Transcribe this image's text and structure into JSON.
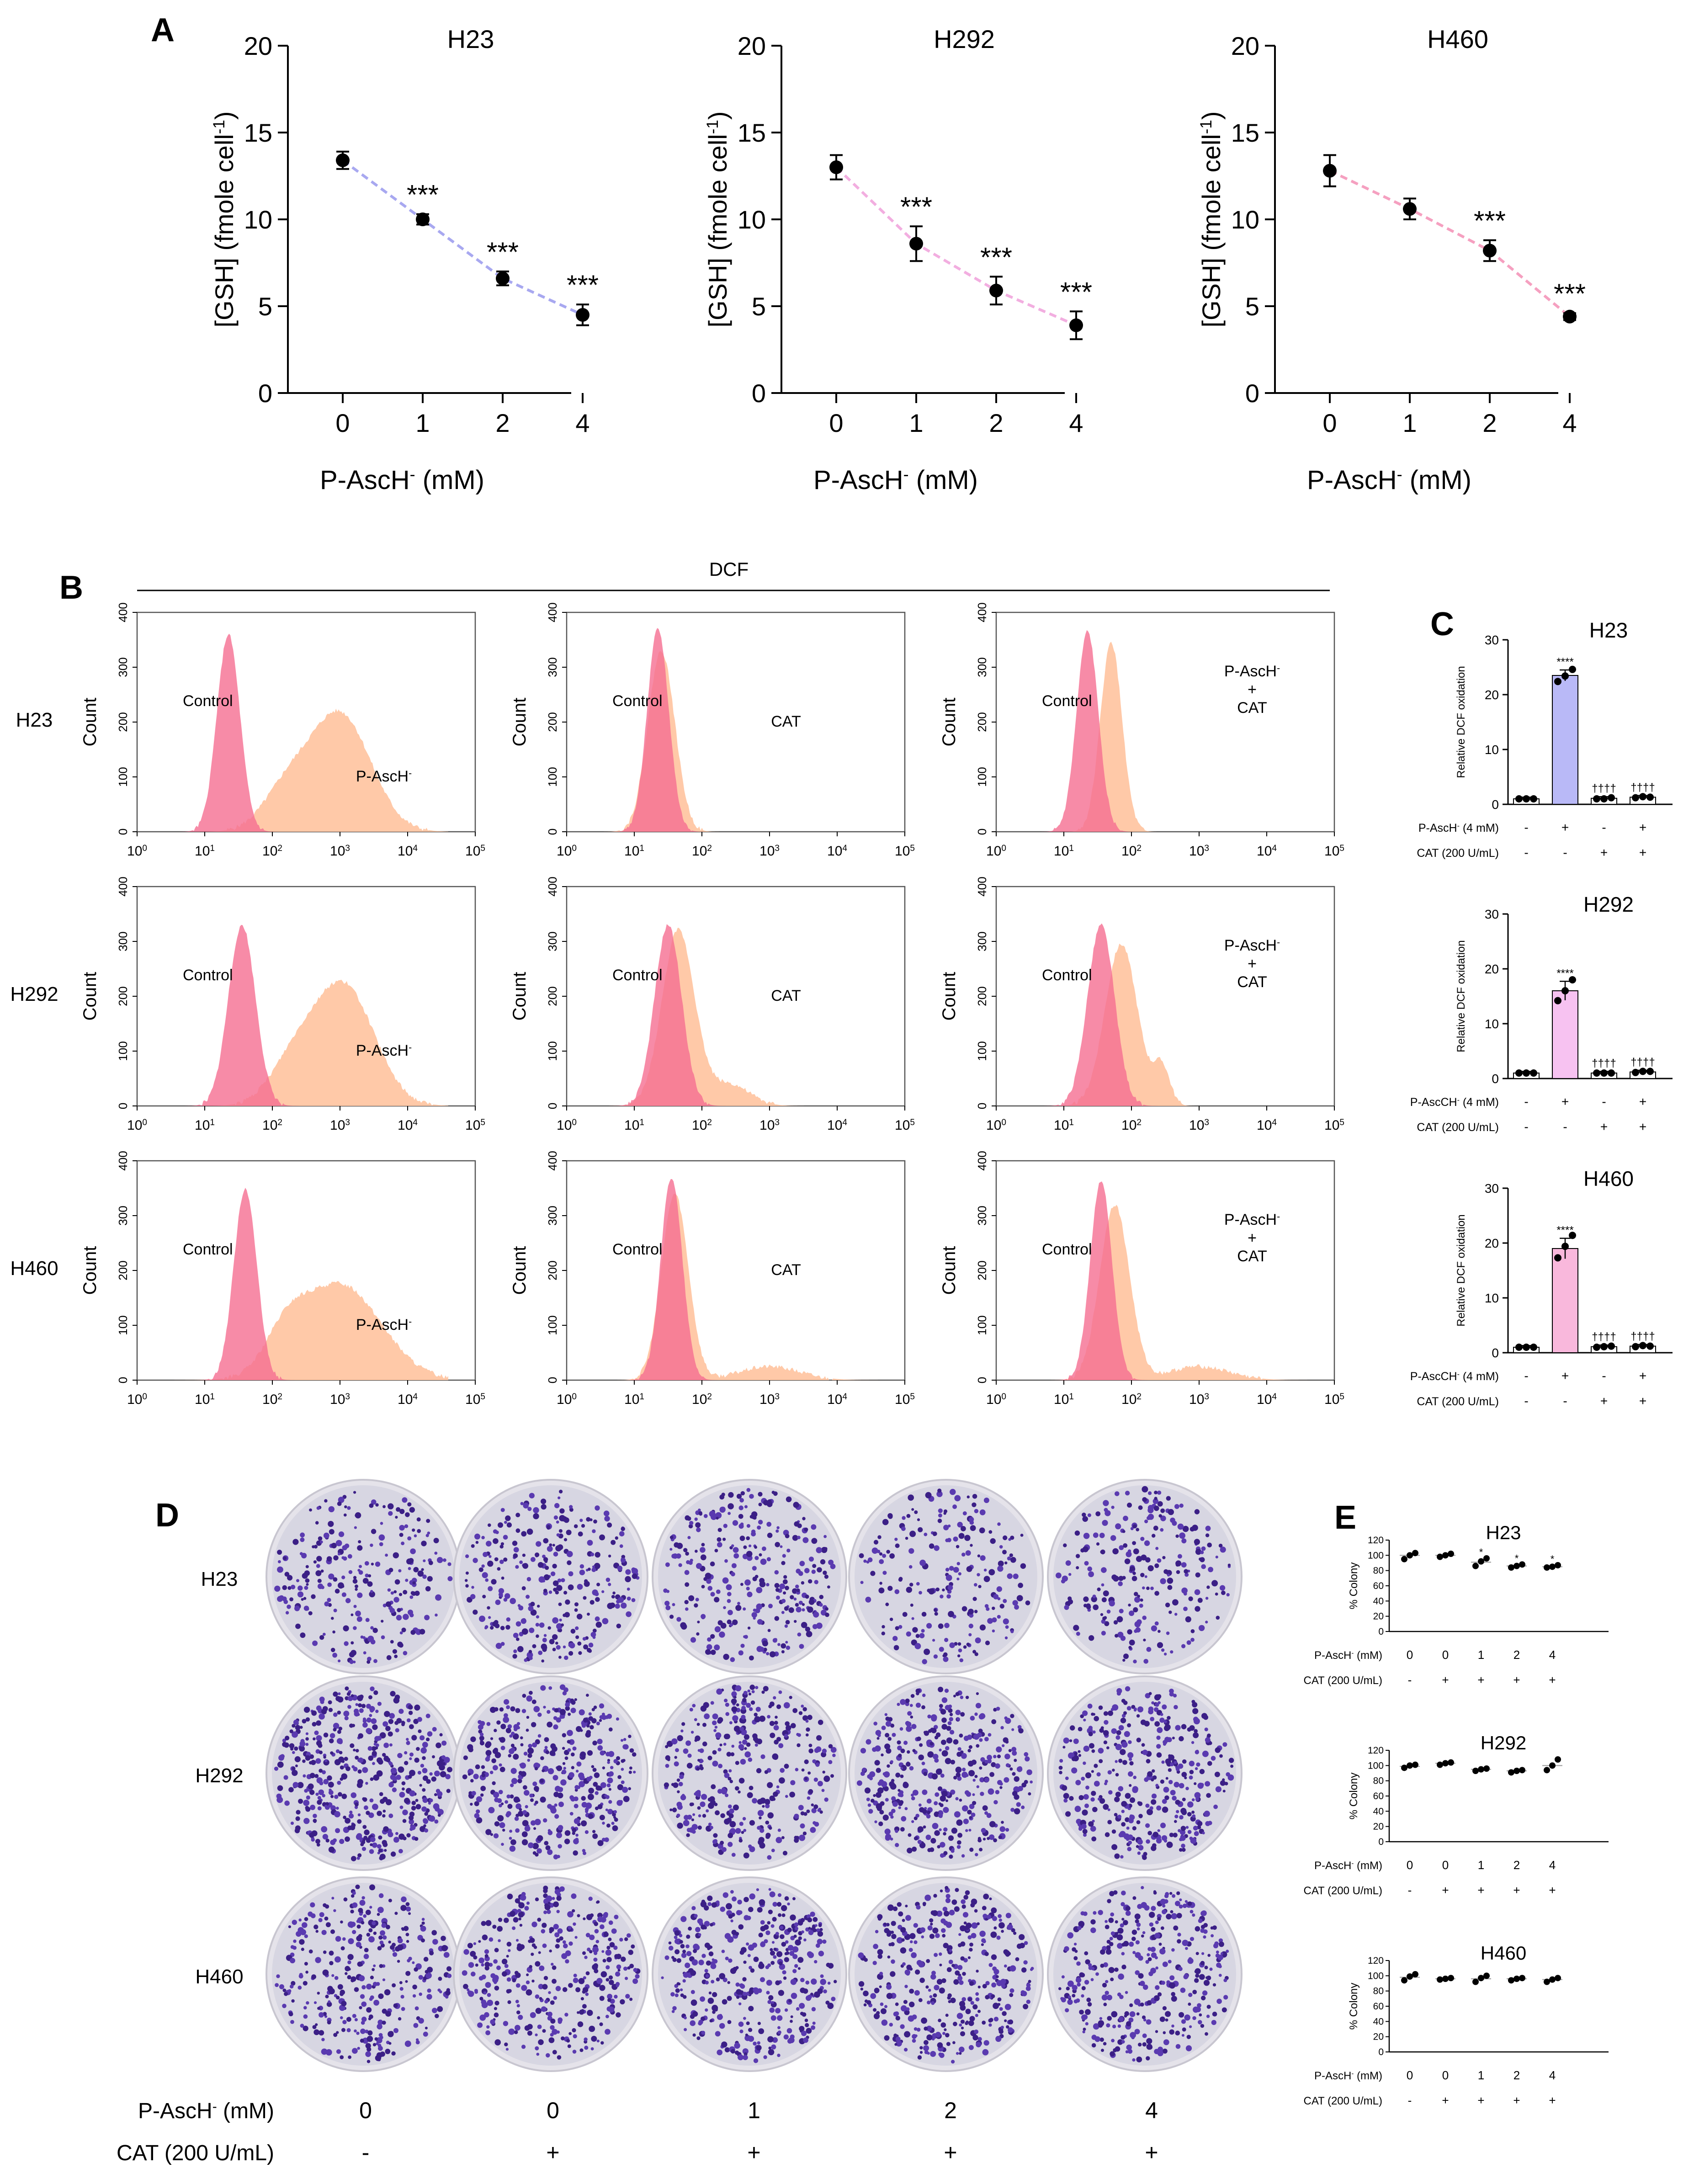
{
  "panels": {
    "A": "A",
    "B": "B",
    "C": "C",
    "D": "D",
    "E": "E"
  },
  "panel_b_header": "DCF",
  "chart_data": [
    {
      "panel": "A",
      "type": "line",
      "title": "H23",
      "xlabel_main": "P-AscH",
      "xlabel_sup": "-",
      "xlabel_tail": " (mM)",
      "ylabel_main": "[GSH] (fmole cell",
      "ylabel_sup": "-1",
      "ylabel_tail": ")",
      "categories": [
        "0",
        "1",
        "2",
        "4"
      ],
      "values": [
        13.4,
        10.0,
        6.6,
        4.5
      ],
      "errors": [
        0.5,
        0.3,
        0.4,
        0.6
      ],
      "significance": [
        "",
        "***",
        "***",
        "***"
      ],
      "ylim": [
        0,
        20
      ],
      "yticks": [
        "0",
        "5",
        "10",
        "15",
        "20"
      ],
      "line_color": "#a8a8f0"
    },
    {
      "panel": "A",
      "type": "line",
      "title": "H292",
      "xlabel_main": "P-AscH",
      "xlabel_sup": "-",
      "xlabel_tail": " (mM)",
      "ylabel_main": "[GSH] (fmole cell",
      "ylabel_sup": "-1",
      "ylabel_tail": ")",
      "categories": [
        "0",
        "1",
        "2",
        "4"
      ],
      "values": [
        13.0,
        8.6,
        5.9,
        3.9
      ],
      "errors": [
        0.7,
        1.0,
        0.8,
        0.8
      ],
      "significance": [
        "",
        "***",
        "***",
        "***"
      ],
      "ylim": [
        0,
        20
      ],
      "yticks": [
        "0",
        "5",
        "10",
        "15",
        "20"
      ],
      "line_color": "#f2aee0"
    },
    {
      "panel": "A",
      "type": "line",
      "title": "H460",
      "xlabel_main": "P-AscH",
      "xlabel_sup": "-",
      "xlabel_tail": " (mM)",
      "ylabel_main": "[GSH] (fmole cell",
      "ylabel_sup": "-1",
      "ylabel_tail": ")",
      "categories": [
        "0",
        "1",
        "2",
        "4"
      ],
      "values": [
        12.8,
        10.6,
        8.2,
        4.4
      ],
      "errors": [
        0.9,
        0.6,
        0.6,
        0.2
      ],
      "significance": [
        "",
        "",
        "***",
        "***"
      ],
      "ylim": [
        0,
        20
      ],
      "yticks": [
        "0",
        "5",
        "10",
        "15",
        "20"
      ],
      "line_color": "#f5a0c0"
    },
    {
      "panel": "C",
      "type": "bar",
      "title": "H23",
      "ylabel": "Relative DCF oxidation",
      "ylim": [
        0,
        30
      ],
      "yticks": [
        "0",
        "10",
        "20",
        "30"
      ],
      "values": [
        1.0,
        23.5,
        1.1,
        1.3
      ],
      "points": [
        [
          1.0,
          1.0,
          1.0
        ],
        [
          22.4,
          23.4,
          24.6
        ],
        [
          1.0,
          1.0,
          1.2
        ],
        [
          1.2,
          1.4,
          1.3
        ]
      ],
      "bar_colors": [
        "#ffffff",
        "#b9b9f7",
        "#ffffff",
        "#ffffff"
      ],
      "annotations": [
        "",
        "****",
        "††††",
        "††††"
      ],
      "treatment_rows": [
        {
          "label": "P-AscH",
          "sup": "-",
          "tail": " (4 mM)",
          "values": [
            "-",
            "+",
            "-",
            "+"
          ]
        },
        {
          "label": "CAT (200 U/mL)",
          "sup": "",
          "tail": "",
          "values": [
            "-",
            "-",
            "+",
            "+"
          ]
        }
      ]
    },
    {
      "panel": "C",
      "type": "bar",
      "title": "H292",
      "ylabel": "Relative DCF oxidation",
      "ylim": [
        0,
        30
      ],
      "yticks": [
        "0",
        "10",
        "20",
        "30"
      ],
      "values": [
        1.0,
        16.0,
        1.0,
        1.2
      ],
      "points": [
        [
          1.0,
          1.0,
          1.0
        ],
        [
          14.2,
          16.0,
          18.0
        ],
        [
          1.0,
          1.0,
          1.0
        ],
        [
          1.1,
          1.3,
          1.3
        ]
      ],
      "bar_colors": [
        "#ffffff",
        "#f7c2f1",
        "#ffffff",
        "#ffffff"
      ],
      "annotations": [
        "",
        "****",
        "††††",
        "††††"
      ],
      "treatment_rows": [
        {
          "label": "P-AscCH",
          "sup": "-",
          "tail": " (4 mM)",
          "values": [
            "-",
            "+",
            "-",
            "+"
          ]
        },
        {
          "label": "CAT (200 U/mL)",
          "sup": "",
          "tail": "",
          "values": [
            "-",
            "-",
            "+",
            "+"
          ]
        }
      ]
    },
    {
      "panel": "C",
      "type": "bar",
      "title": "H460",
      "ylabel": "Relative DCF oxidation",
      "ylim": [
        0,
        30
      ],
      "yticks": [
        "0",
        "10",
        "20",
        "30"
      ],
      "values": [
        1.0,
        19.0,
        1.1,
        1.2
      ],
      "points": [
        [
          1.0,
          1.0,
          1.0
        ],
        [
          17.3,
          19.4,
          21.4
        ],
        [
          1.0,
          1.1,
          1.2
        ],
        [
          1.1,
          1.3,
          1.2
        ]
      ],
      "bar_colors": [
        "#ffffff",
        "#f9b8dc",
        "#ffffff",
        "#ffffff"
      ],
      "annotations": [
        "",
        "****",
        "††††",
        "††††"
      ],
      "treatment_rows": [
        {
          "label": "P-AscCH",
          "sup": "-",
          "tail": " (4 mM)",
          "values": [
            "-",
            "+",
            "-",
            "+"
          ]
        },
        {
          "label": "CAT (200 U/mL)",
          "sup": "",
          "tail": "",
          "values": [
            "-",
            "-",
            "+",
            "+"
          ]
        }
      ]
    },
    {
      "panel": "E",
      "type": "scatter",
      "title": "H23",
      "ylabel": "% Colony",
      "ylim": [
        0,
        120
      ],
      "yticks": [
        "0",
        "20",
        "40",
        "60",
        "80",
        "100",
        "120"
      ],
      "groups": [
        [
          95,
          100,
          103
        ],
        [
          98,
          100,
          102
        ],
        [
          86,
          92,
          96
        ],
        [
          84,
          86,
          88
        ],
        [
          84,
          85,
          87
        ]
      ],
      "means": [
        100,
        100,
        91,
        86,
        85
      ],
      "annotations": [
        "",
        "",
        "*",
        "*",
        "*"
      ],
      "treatment_rows": [
        {
          "label": "P-AscH",
          "sup": "-",
          "tail": " (mM)",
          "values": [
            "0",
            "0",
            "1",
            "2",
            "4"
          ]
        },
        {
          "label": "CAT (200 U/mL)",
          "sup": "",
          "tail": "",
          "values": [
            "-",
            "+",
            "+",
            "+",
            "+"
          ]
        }
      ]
    },
    {
      "panel": "E",
      "type": "scatter",
      "title": "H292",
      "ylabel": "% Colony",
      "ylim": [
        0,
        120
      ],
      "yticks": [
        "0",
        "20",
        "40",
        "60",
        "80",
        "100",
        "120"
      ],
      "groups": [
        [
          97,
          100,
          101
        ],
        [
          101,
          103,
          104
        ],
        [
          93,
          95,
          96
        ],
        [
          91,
          93,
          94
        ],
        [
          94,
          100,
          108
        ]
      ],
      "means": [
        99,
        103,
        95,
        93,
        100
      ],
      "annotations": [
        "",
        "",
        "",
        "",
        ""
      ],
      "treatment_rows": [
        {
          "label": "P-AscH",
          "sup": "-",
          "tail": " (mM)",
          "values": [
            "0",
            "0",
            "1",
            "2",
            "4"
          ]
        },
        {
          "label": "CAT (200 U/mL)",
          "sup": "",
          "tail": "",
          "values": [
            "-",
            "+",
            "+",
            "+",
            "+"
          ]
        }
      ]
    },
    {
      "panel": "E",
      "type": "scatter",
      "title": "H460",
      "ylabel": "% Colony",
      "ylim": [
        0,
        120
      ],
      "yticks": [
        "0",
        "20",
        "40",
        "60",
        "80",
        "100",
        "120"
      ],
      "groups": [
        [
          94,
          99,
          102
        ],
        [
          95,
          96,
          97
        ],
        [
          92,
          97,
          100
        ],
        [
          94,
          96,
          97
        ],
        [
          92,
          95,
          97
        ]
      ],
      "means": [
        98,
        96,
        96,
        96,
        95
      ],
      "annotations": [
        "",
        "",
        "",
        "",
        ""
      ],
      "treatment_rows": [
        {
          "label": "P-AscH",
          "sup": "-",
          "tail": " (mM)",
          "values": [
            "0",
            "0",
            "1",
            "2",
            "4"
          ]
        },
        {
          "label": "CAT (200 U/mL)",
          "sup": "",
          "tail": "",
          "values": [
            "-",
            "+",
            "+",
            "+",
            "+"
          ]
        }
      ]
    },
    {
      "panel": "B",
      "type": "area",
      "description_free": true,
      "rows": [
        "H23",
        "H292",
        "H460"
      ],
      "ylabel": "Count",
      "ylim": [
        0,
        400
      ],
      "yticks": [
        "0",
        "100",
        "200",
        "300",
        "400"
      ],
      "xticks": [
        "10^0",
        "10^1",
        "10^2",
        "10^3",
        "10^4",
        "10^5"
      ],
      "control_color": "#f56e91",
      "treated_color": "#ffc6a3",
      "overlap_color": "#f39484",
      "histograms": [
        {
          "row": "H23",
          "col": 0,
          "control_label": "Control",
          "treated_label": "P-AscH",
          "treated_sup": "-",
          "treated_label_line2": "",
          "treated_label_line3": "",
          "control": {
            "mu": 1.35,
            "sd": 0.17,
            "peak": 360
          },
          "treated": {
            "mu": 3.0,
            "sd": 0.45,
            "peak": 215,
            "mu2": 2.2,
            "sd2": 0.35,
            "peak2": 70
          }
        },
        {
          "row": "H23",
          "col": 1,
          "control_label": "Control",
          "treated_label": "CAT",
          "treated_sup": "",
          "treated_label_line2": "",
          "treated_label_line3": "",
          "control": {
            "mu": 1.35,
            "sd": 0.16,
            "peak": 370
          },
          "treated": {
            "mu": 1.4,
            "sd": 0.2,
            "peak": 330
          }
        },
        {
          "row": "H23",
          "col": 2,
          "control_label": "Control",
          "treated_label": "P-AscH",
          "treated_sup": "-",
          "treated_label_line2": "+",
          "treated_label_line3": "CAT",
          "control": {
            "mu": 1.35,
            "sd": 0.16,
            "peak": 365
          },
          "treated": {
            "mu": 1.7,
            "sd": 0.16,
            "peak": 345
          }
        },
        {
          "row": "H292",
          "col": 0,
          "control_label": "Control",
          "treated_label": "P-AscH",
          "treated_sup": "-",
          "treated_label_line2": "",
          "treated_label_line3": "",
          "control": {
            "mu": 1.55,
            "sd": 0.2,
            "peak": 330
          },
          "treated": {
            "mu": 3.05,
            "sd": 0.45,
            "peak": 220,
            "mu2": 2.3,
            "sd2": 0.35,
            "peak2": 70
          }
        },
        {
          "row": "H292",
          "col": 1,
          "control_label": "Control",
          "treated_label": "CAT",
          "treated_sup": "",
          "treated_label_line2": "",
          "treated_label_line3": "",
          "control": {
            "mu": 1.5,
            "sd": 0.2,
            "peak": 330
          },
          "treated": {
            "mu": 1.65,
            "sd": 0.24,
            "peak": 320,
            "mu2": 2.4,
            "sd2": 0.3,
            "peak2": 40
          }
        },
        {
          "row": "H292",
          "col": 2,
          "control_label": "Control",
          "treated_label": "P-AscH",
          "treated_sup": "-",
          "treated_label_line2": "+",
          "treated_label_line3": "CAT",
          "control": {
            "mu": 1.55,
            "sd": 0.2,
            "peak": 330
          },
          "treated": {
            "mu": 1.85,
            "sd": 0.24,
            "peak": 295,
            "mu2": 2.45,
            "sd2": 0.12,
            "peak2": 70
          }
        },
        {
          "row": "H460",
          "col": 0,
          "control_label": "Control",
          "treated_label": "P-AscH",
          "treated_sup": "-",
          "treated_label_line2": "",
          "treated_label_line3": "",
          "control": {
            "mu": 1.6,
            "sd": 0.17,
            "peak": 350
          },
          "treated": {
            "mu": 3.0,
            "sd": 0.6,
            "peak": 175,
            "mu2": 2.2,
            "sd2": 0.3,
            "peak2": 60
          }
        },
        {
          "row": "H460",
          "col": 1,
          "control_label": "Control",
          "treated_label": "CAT",
          "treated_sup": "",
          "treated_label_line2": "",
          "treated_label_line3": "",
          "control": {
            "mu": 1.55,
            "sd": 0.16,
            "peak": 370
          },
          "treated": {
            "mu": 1.6,
            "sd": 0.2,
            "peak": 340,
            "mu2": 3.0,
            "sd2": 0.45,
            "peak2": 25
          }
        },
        {
          "row": "H460",
          "col": 2,
          "control_label": "Control",
          "treated_label": "P-AscH",
          "treated_sup": "-",
          "treated_label_line2": "+",
          "treated_label_line3": "CAT",
          "control": {
            "mu": 1.55,
            "sd": 0.16,
            "peak": 365
          },
          "treated": {
            "mu": 1.75,
            "sd": 0.22,
            "peak": 320,
            "mu2": 3.0,
            "sd2": 0.45,
            "peak2": 25
          }
        }
      ]
    }
  ],
  "panel_d": {
    "rows": [
      "H23",
      "H292",
      "H460"
    ],
    "columns": 5,
    "dish_colony_counts": [
      [
        260,
        300,
        310,
        220,
        240
      ],
      [
        470,
        420,
        360,
        400,
        380
      ],
      [
        340,
        360,
        400,
        380,
        370
      ]
    ],
    "treatment_rows": [
      {
        "label": "P-AscH",
        "sup": "-",
        "tail": " (mM)",
        "values": [
          "0",
          "0",
          "1",
          "2",
          "4"
        ]
      },
      {
        "label": "CAT (200 U/mL)",
        "sup": "",
        "tail": "",
        "values": [
          "-",
          "+",
          "+",
          "+",
          "+"
        ]
      }
    ]
  }
}
